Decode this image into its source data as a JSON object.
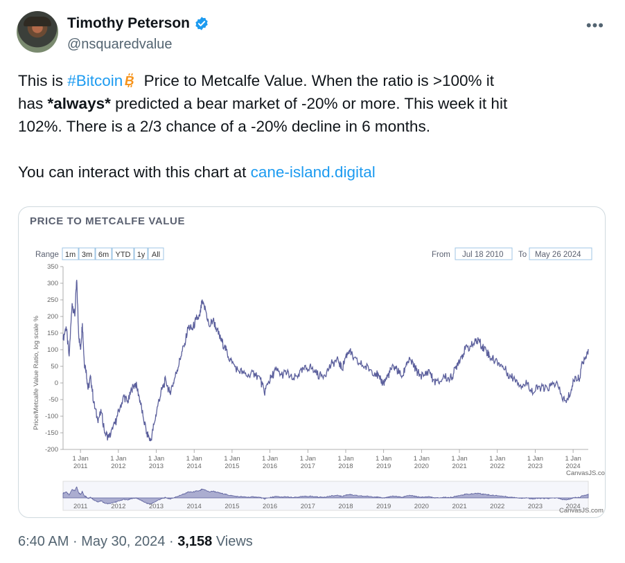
{
  "author": {
    "name": "Timothy Peterson",
    "handle": "@nsquaredvalue",
    "verified": true
  },
  "tweet": {
    "line1_pre": "This is ",
    "hashtag": "#Bitcoin",
    "line1_post": " Price to Metcalfe Value.  When the ratio is >100% it",
    "line2_pre": "has ",
    "bold": "*always*",
    "line2_post": " predicted a bear market of -20% or more. This week it hit",
    "line3": "102%.  There is a 2/3 chance of a -20% decline in 6 months.",
    "line4_pre": "You can interact with this chart at ",
    "link": "cane-island.digital"
  },
  "chart_card": {
    "title": "PRICE TO METCALFE VALUE",
    "range_label": "Range",
    "range_buttons": [
      "1m",
      "3m",
      "6m",
      "YTD",
      "1y",
      "All"
    ],
    "from_label": "From",
    "from_value": "Jul 18 2010",
    "to_label": "To",
    "to_value": "May 26 2024",
    "credit_main": "CanvasJS.com",
    "credit_nav": "CanvasJS.com"
  },
  "chart_data": {
    "type": "line",
    "ylabel": "Price/Metcalfe Value Ratio, log scale %",
    "ylim": [
      -200,
      350
    ],
    "yticks": [
      350,
      300,
      250,
      200,
      150,
      100,
      50,
      0,
      -50,
      -100,
      -150,
      -200
    ],
    "xticks": [
      {
        "top": "1 Jan",
        "bottom": "2011",
        "x": 2011
      },
      {
        "top": "1 Jan",
        "bottom": "2012",
        "x": 2012
      },
      {
        "top": "1 Jan",
        "bottom": "2013",
        "x": 2013
      },
      {
        "top": "1 Jan",
        "bottom": "2014",
        "x": 2014
      },
      {
        "top": "1 Jan",
        "bottom": "2015",
        "x": 2015
      },
      {
        "top": "1 Jan",
        "bottom": "2016",
        "x": 2016
      },
      {
        "top": "1 Jan",
        "bottom": "2017",
        "x": 2017
      },
      {
        "top": "1 Jan",
        "bottom": "2018",
        "x": 2018
      },
      {
        "top": "1 Jan",
        "bottom": "2019",
        "x": 2019
      },
      {
        "top": "1 Jan",
        "bottom": "2020",
        "x": 2020
      },
      {
        "top": "1 Jan",
        "bottom": "2021",
        "x": 2021
      },
      {
        "top": "1 Jan",
        "bottom": "2022",
        "x": 2022
      },
      {
        "top": "1 Jan",
        "bottom": "2023",
        "x": 2023
      },
      {
        "top": "1 Jan",
        "bottom": "2024",
        "x": 2024
      }
    ],
    "nav_ticks": [
      "2011",
      "2012",
      "2013",
      "2014",
      "2015",
      "2016",
      "2017",
      "2018",
      "2019",
      "2020",
      "2021",
      "2022",
      "2023",
      "2024"
    ],
    "xlim": [
      2010.54,
      2024.4
    ],
    "series": [
      {
        "color": "#5b5f9c",
        "points": [
          [
            2010.54,
            130
          ],
          [
            2010.62,
            170
          ],
          [
            2010.7,
            80
          ],
          [
            2010.78,
            240
          ],
          [
            2010.85,
            200
          ],
          [
            2010.9,
            310
          ],
          [
            2010.95,
            150
          ],
          [
            2011.0,
            100
          ],
          [
            2011.05,
            180
          ],
          [
            2011.1,
            60
          ],
          [
            2011.15,
            40
          ],
          [
            2011.2,
            -20
          ],
          [
            2011.27,
            20
          ],
          [
            2011.35,
            -60
          ],
          [
            2011.45,
            -110
          ],
          [
            2011.55,
            -90
          ],
          [
            2011.65,
            -150
          ],
          [
            2011.75,
            -165
          ],
          [
            2011.85,
            -140
          ],
          [
            2011.95,
            -110
          ],
          [
            2012.05,
            -70
          ],
          [
            2012.15,
            -40
          ],
          [
            2012.25,
            -60
          ],
          [
            2012.35,
            -20
          ],
          [
            2012.45,
            0
          ],
          [
            2012.55,
            -40
          ],
          [
            2012.65,
            -100
          ],
          [
            2012.75,
            -150
          ],
          [
            2012.85,
            -175
          ],
          [
            2012.95,
            -120
          ],
          [
            2013.05,
            -60
          ],
          [
            2013.15,
            -20
          ],
          [
            2013.25,
            10
          ],
          [
            2013.35,
            -30
          ],
          [
            2013.45,
            0
          ],
          [
            2013.55,
            40
          ],
          [
            2013.65,
            80
          ],
          [
            2013.75,
            120
          ],
          [
            2013.85,
            170
          ],
          [
            2013.95,
            160
          ],
          [
            2014.05,
            190
          ],
          [
            2014.15,
            200
          ],
          [
            2014.2,
            240
          ],
          [
            2014.3,
            220
          ],
          [
            2014.4,
            170
          ],
          [
            2014.5,
            190
          ],
          [
            2014.6,
            160
          ],
          [
            2014.7,
            130
          ],
          [
            2014.8,
            110
          ],
          [
            2014.9,
            80
          ],
          [
            2015.0,
            60
          ],
          [
            2015.15,
            40
          ],
          [
            2015.3,
            30
          ],
          [
            2015.45,
            20
          ],
          [
            2015.6,
            30
          ],
          [
            2015.75,
            10
          ],
          [
            2015.85,
            -30
          ],
          [
            2015.95,
            0
          ],
          [
            2016.05,
            20
          ],
          [
            2016.15,
            40
          ],
          [
            2016.3,
            25
          ],
          [
            2016.45,
            30
          ],
          [
            2016.6,
            10
          ],
          [
            2016.75,
            25
          ],
          [
            2016.9,
            40
          ],
          [
            2017.05,
            50
          ],
          [
            2017.2,
            30
          ],
          [
            2017.35,
            20
          ],
          [
            2017.5,
            35
          ],
          [
            2017.65,
            60
          ],
          [
            2017.8,
            70
          ],
          [
            2017.9,
            40
          ],
          [
            2018.0,
            80
          ],
          [
            2018.1,
            100
          ],
          [
            2018.2,
            70
          ],
          [
            2018.35,
            60
          ],
          [
            2018.5,
            50
          ],
          [
            2018.65,
            40
          ],
          [
            2018.8,
            30
          ],
          [
            2018.9,
            10
          ],
          [
            2019.0,
            0
          ],
          [
            2019.1,
            20
          ],
          [
            2019.2,
            40
          ],
          [
            2019.3,
            50
          ],
          [
            2019.4,
            30
          ],
          [
            2019.5,
            20
          ],
          [
            2019.6,
            60
          ],
          [
            2019.7,
            70
          ],
          [
            2019.8,
            50
          ],
          [
            2019.9,
            30
          ],
          [
            2020.05,
            20
          ],
          [
            2020.2,
            40
          ],
          [
            2020.3,
            10
          ],
          [
            2020.45,
            0
          ],
          [
            2020.6,
            20
          ],
          [
            2020.75,
            10
          ],
          [
            2020.85,
            30
          ],
          [
            2020.95,
            60
          ],
          [
            2021.05,
            80
          ],
          [
            2021.15,
            100
          ],
          [
            2021.3,
            110
          ],
          [
            2021.4,
            120
          ],
          [
            2021.5,
            130
          ],
          [
            2021.6,
            110
          ],
          [
            2021.7,
            100
          ],
          [
            2021.8,
            80
          ],
          [
            2021.9,
            70
          ],
          [
            2022.05,
            60
          ],
          [
            2022.2,
            40
          ],
          [
            2022.35,
            20
          ],
          [
            2022.5,
            10
          ],
          [
            2022.65,
            -10
          ],
          [
            2022.8,
            0
          ],
          [
            2022.95,
            -30
          ],
          [
            2023.1,
            -10
          ],
          [
            2023.25,
            -20
          ],
          [
            2023.4,
            -10
          ],
          [
            2023.55,
            0
          ],
          [
            2023.7,
            -40
          ],
          [
            2023.82,
            -60
          ],
          [
            2023.95,
            -20
          ],
          [
            2024.05,
            20
          ],
          [
            2024.15,
            10
          ],
          [
            2024.25,
            60
          ],
          [
            2024.33,
            80
          ],
          [
            2024.4,
            102
          ]
        ]
      }
    ],
    "grid": false,
    "legend": "none"
  },
  "footer": {
    "time": "6:40 AM",
    "sep1": "·",
    "date": "May 30, 2024",
    "sep2": "·",
    "views_count": "3,158",
    "views_label": "Views"
  },
  "colors": {
    "link": "#1d9bf0",
    "verified_badge": "#1d9bf0",
    "line": "#5b5f9c",
    "nav_fill": "#9da0c8"
  }
}
